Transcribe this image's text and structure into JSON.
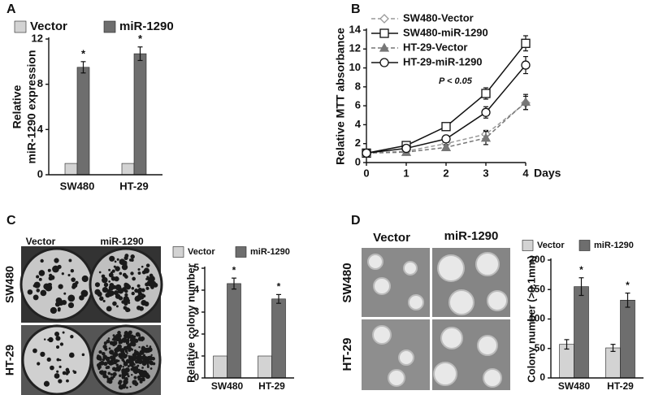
{
  "panel_labels": [
    "A",
    "B",
    "C",
    "D"
  ],
  "photos": [
    {
      "columns": [
        "Vector",
        "miR-1290"
      ],
      "rows": [
        "SW480",
        "HT-29"
      ]
    },
    {
      "columns": [
        "Vector",
        "miR-1290"
      ],
      "rows": [
        "SW480",
        "HT-29"
      ]
    }
  ],
  "chart_data": [
    {
      "type": "bar",
      "ylabel": [
        "Relative",
        "miR-1290 expression"
      ],
      "categories": [
        "SW480",
        "HT-29"
      ],
      "series": [
        {
          "name": "Vector",
          "color": "#d3d3d3",
          "values": [
            1,
            1
          ]
        },
        {
          "name": "miR-1290",
          "color": "#6e6e6e",
          "values": [
            9.5,
            10.7
          ],
          "errors": [
            0.5,
            0.6
          ],
          "annotations": [
            "*",
            "*"
          ]
        }
      ],
      "ylim": [
        0,
        12
      ],
      "yticks": [
        0,
        4,
        8,
        12
      ]
    },
    {
      "type": "line",
      "ylabel": [
        "Relative MTT absorbance"
      ],
      "xlabel": "Days",
      "annotation": "P < 0.05",
      "x": [
        0,
        1,
        2,
        3,
        4
      ],
      "series": [
        {
          "name": "SW480-Vector",
          "color": "#999999",
          "dashed": true,
          "marker": "diamond",
          "filled": false,
          "values": [
            1,
            1.2,
            2.0,
            3.0,
            6.3
          ],
          "errors": [
            0.1,
            0.2,
            0.3,
            0.4,
            0.7
          ]
        },
        {
          "name": "SW480-miR-1290",
          "color": "#111111",
          "dashed": false,
          "marker": "square",
          "filled": false,
          "values": [
            1,
            1.8,
            3.8,
            7.3,
            12.6
          ],
          "errors": [
            0.1,
            0.2,
            0.4,
            0.6,
            0.8
          ]
        },
        {
          "name": "HT-29-Vector",
          "color": "#777777",
          "dashed": true,
          "marker": "triangle",
          "filled": true,
          "values": [
            1,
            1.1,
            1.6,
            2.6,
            6.4
          ],
          "errors": [
            0.1,
            0.2,
            0.3,
            0.7,
            0.8
          ]
        },
        {
          "name": "HT-29-miR-1290",
          "color": "#111111",
          "dashed": false,
          "marker": "circle",
          "filled": false,
          "values": [
            1,
            1.5,
            2.5,
            5.3,
            10.3
          ],
          "errors": [
            0.1,
            0.2,
            0.3,
            0.6,
            0.9
          ]
        }
      ],
      "xlim": [
        0,
        4
      ],
      "xticks": [
        0,
        1,
        2,
        3,
        4
      ],
      "ylim": [
        0,
        14
      ],
      "yticks": [
        0,
        2,
        4,
        6,
        8,
        10,
        12,
        14
      ]
    },
    {
      "type": "bar",
      "ylabel": [
        "Relative colony number"
      ],
      "categories": [
        "SW480",
        "HT-29"
      ],
      "series": [
        {
          "name": "Vector",
          "color": "#d3d3d3",
          "values": [
            1,
            1
          ]
        },
        {
          "name": "miR-1290",
          "color": "#6e6e6e",
          "values": [
            4.3,
            3.6
          ],
          "errors": [
            0.25,
            0.2
          ],
          "annotations": [
            "*",
            "*"
          ]
        }
      ],
      "ylim": [
        0,
        5
      ],
      "yticks": [
        0,
        1,
        2,
        3,
        4,
        5
      ]
    },
    {
      "type": "bar",
      "ylabel": [
        "Colony number (>0.1mm)"
      ],
      "categories": [
        "SW480",
        "HT-29"
      ],
      "series": [
        {
          "name": "Vector",
          "color": "#d3d3d3",
          "values": [
            57,
            51
          ],
          "errors": [
            8,
            6
          ]
        },
        {
          "name": "miR-1290",
          "color": "#6e6e6e",
          "values": [
            155,
            132
          ],
          "errors": [
            15,
            12
          ],
          "annotations": [
            "*",
            "*"
          ]
        }
      ],
      "ylim": [
        0,
        200
      ],
      "yticks": [
        0,
        50,
        100,
        150,
        200
      ]
    }
  ]
}
